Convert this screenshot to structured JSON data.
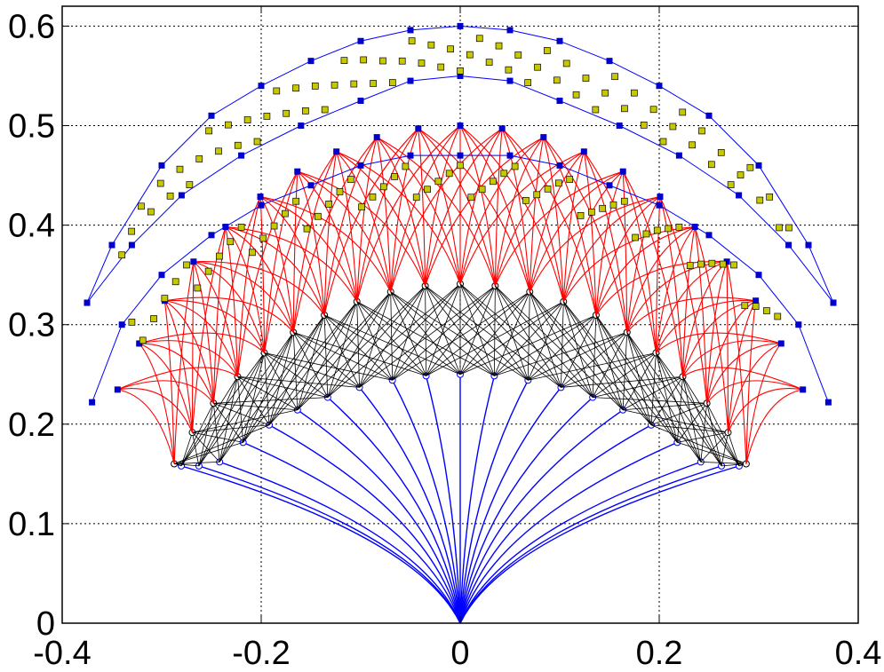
{
  "chart_data": {
    "type": "line",
    "title": "",
    "xlabel": "",
    "ylabel": "",
    "xlim": [
      -0.4,
      0.4
    ],
    "ylim": [
      0,
      0.62
    ],
    "grid": true,
    "x_ticks": [
      -0.4,
      -0.2,
      0,
      0.2,
      0.4
    ],
    "x_tick_labels": [
      "-0.4",
      "-0.2",
      "0",
      "0.2",
      "0.4"
    ],
    "y_ticks": [
      0,
      0.1,
      0.2,
      0.3,
      0.4,
      0.5,
      0.6
    ],
    "y_tick_labels": [
      "0",
      "0.1",
      "0.2",
      "0.3",
      "0.4",
      "0.5",
      "0.6"
    ],
    "colors": {
      "blue": "#0000ff",
      "red": "#ff0000",
      "black": "#000000",
      "yellow_fill": "#c8c800",
      "marker_blue": "#0000cc"
    },
    "fan": {
      "branch_count": 21,
      "angle_range_deg": [
        -62,
        62
      ],
      "stem_end_radius": 0.25,
      "stem_end_y_min": 0.158,
      "black_end_radius": 0.31,
      "black_end_y_min": 0.158,
      "red_end_radius": 0.5,
      "red_end_y_min": 0.22,
      "red_inner_radius": 0.45
    },
    "series": [
      {
        "kind": "stems",
        "color": "blue",
        "marker": "open-circle"
      },
      {
        "kind": "black-bundle",
        "color": "black",
        "marker": "open-circle"
      },
      {
        "kind": "red-arcs",
        "color": "red"
      },
      {
        "kind": "inner-boundary",
        "color": "blue",
        "marker": "filled-square",
        "points": [
          [
            -0.37,
            0.222
          ],
          [
            -0.34,
            0.3
          ],
          [
            -0.3,
            0.35
          ],
          [
            -0.25,
            0.39
          ],
          [
            -0.2,
            0.42
          ],
          [
            -0.15,
            0.44
          ],
          [
            -0.1,
            0.46
          ],
          [
            -0.05,
            0.47
          ],
          [
            0,
            0.47
          ],
          [
            0.05,
            0.47
          ],
          [
            0.1,
            0.46
          ],
          [
            0.15,
            0.44
          ],
          [
            0.2,
            0.42
          ],
          [
            0.25,
            0.39
          ],
          [
            0.3,
            0.35
          ],
          [
            0.34,
            0.3
          ],
          [
            0.37,
            0.222
          ]
        ]
      },
      {
        "kind": "outer-top",
        "color": "blue",
        "marker": "filled-square",
        "points": [
          [
            -0.375,
            0.322
          ],
          [
            -0.35,
            0.38
          ],
          [
            -0.3,
            0.46
          ],
          [
            -0.25,
            0.51
          ],
          [
            -0.2,
            0.54
          ],
          [
            -0.15,
            0.565
          ],
          [
            -0.1,
            0.585
          ],
          [
            -0.05,
            0.596
          ],
          [
            0,
            0.6
          ],
          [
            0.05,
            0.596
          ],
          [
            0.1,
            0.585
          ],
          [
            0.15,
            0.565
          ],
          [
            0.2,
            0.54
          ],
          [
            0.25,
            0.51
          ],
          [
            0.3,
            0.46
          ],
          [
            0.35,
            0.38
          ],
          [
            0.375,
            0.322
          ]
        ]
      },
      {
        "kind": "outer-lower",
        "color": "blue",
        "marker": "filled-square",
        "points": [
          [
            -0.375,
            0.322
          ],
          [
            -0.33,
            0.38
          ],
          [
            -0.28,
            0.43
          ],
          [
            -0.22,
            0.47
          ],
          [
            -0.16,
            0.5
          ],
          [
            -0.1,
            0.525
          ],
          [
            -0.05,
            0.545
          ],
          [
            0,
            0.55
          ],
          [
            0.05,
            0.545
          ],
          [
            0.1,
            0.525
          ],
          [
            0.16,
            0.5
          ],
          [
            0.22,
            0.47
          ],
          [
            0.28,
            0.43
          ],
          [
            0.33,
            0.38
          ],
          [
            0.375,
            0.322
          ]
        ]
      }
    ]
  }
}
